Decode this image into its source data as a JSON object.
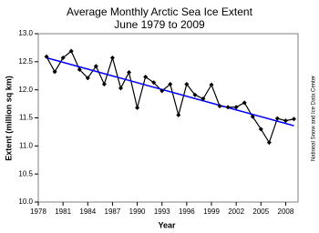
{
  "chart_data": {
    "type": "line",
    "title": "Average Monthly Arctic Sea Ice Extent",
    "subtitle": "June 1979 to 2009",
    "x_label": "Year",
    "y_label": "Extent (million sq km)",
    "source": "National Snow and Ice Data Center",
    "x": [
      1979,
      1980,
      1981,
      1982,
      1983,
      1984,
      1985,
      1986,
      1987,
      1988,
      1989,
      1990,
      1991,
      1992,
      1993,
      1994,
      1995,
      1996,
      1997,
      1998,
      1999,
      2000,
      2001,
      2002,
      2003,
      2004,
      2005,
      2006,
      2007,
      2008,
      2009
    ],
    "values": [
      12.59,
      12.32,
      12.57,
      12.69,
      12.36,
      12.21,
      12.42,
      12.1,
      12.57,
      12.03,
      12.31,
      11.68,
      12.23,
      12.13,
      11.98,
      12.1,
      11.55,
      12.1,
      11.91,
      11.84,
      12.09,
      11.71,
      11.69,
      11.69,
      11.77,
      11.52,
      11.3,
      11.06,
      11.49,
      11.45,
      11.48
    ],
    "color": "#000000",
    "trend_line": {
      "x": [
        1979,
        2009
      ],
      "values": [
        12.57,
        11.36
      ],
      "color": "#0000ff"
    },
    "xlim": [
      1978,
      2009.5
    ],
    "ylim": [
      10,
      13
    ],
    "xticks": [
      1978,
      1981,
      1984,
      1987,
      1990,
      1993,
      1996,
      1999,
      2002,
      2005,
      2008
    ],
    "yticks": [
      {
        "value": 10,
        "label": "10.0"
      },
      {
        "value": 10.5,
        "label": "10.5"
      },
      {
        "value": 11,
        "label": "11.0"
      },
      {
        "value": 11.5,
        "label": "11.5"
      },
      {
        "value": 12,
        "label": "12.0"
      },
      {
        "value": 12.5,
        "label": "12.5"
      },
      {
        "value": 13,
        "label": "13.0"
      }
    ],
    "grid": false
  }
}
